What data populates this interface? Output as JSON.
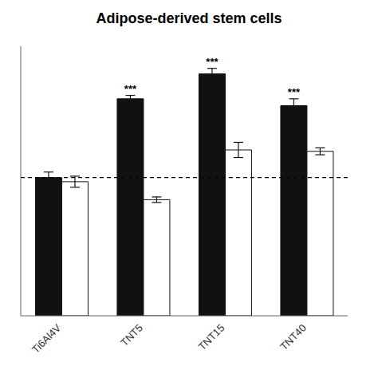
{
  "chart_data": {
    "type": "bar",
    "title": "Adipose-derived stem cells",
    "categories": [
      "Ti6Al4V",
      "TNT5",
      "TNT15",
      "TNT40"
    ],
    "series": [
      {
        "color": "#111111",
        "values": [
          1.0,
          1.57,
          1.75,
          1.52
        ],
        "errors": [
          0.04,
          0.025,
          0.04,
          0.05
        ],
        "annotations": [
          null,
          "***",
          "***",
          "***"
        ]
      },
      {
        "color": "#ffffff",
        "values": [
          0.97,
          0.84,
          1.2,
          1.19
        ],
        "errors": [
          0.04,
          0.02,
          0.055,
          0.025
        ]
      }
    ],
    "ylim": [
      0,
      1.95
    ],
    "reference_line": 1.0,
    "tick_labels": "x",
    "grid": false
  }
}
